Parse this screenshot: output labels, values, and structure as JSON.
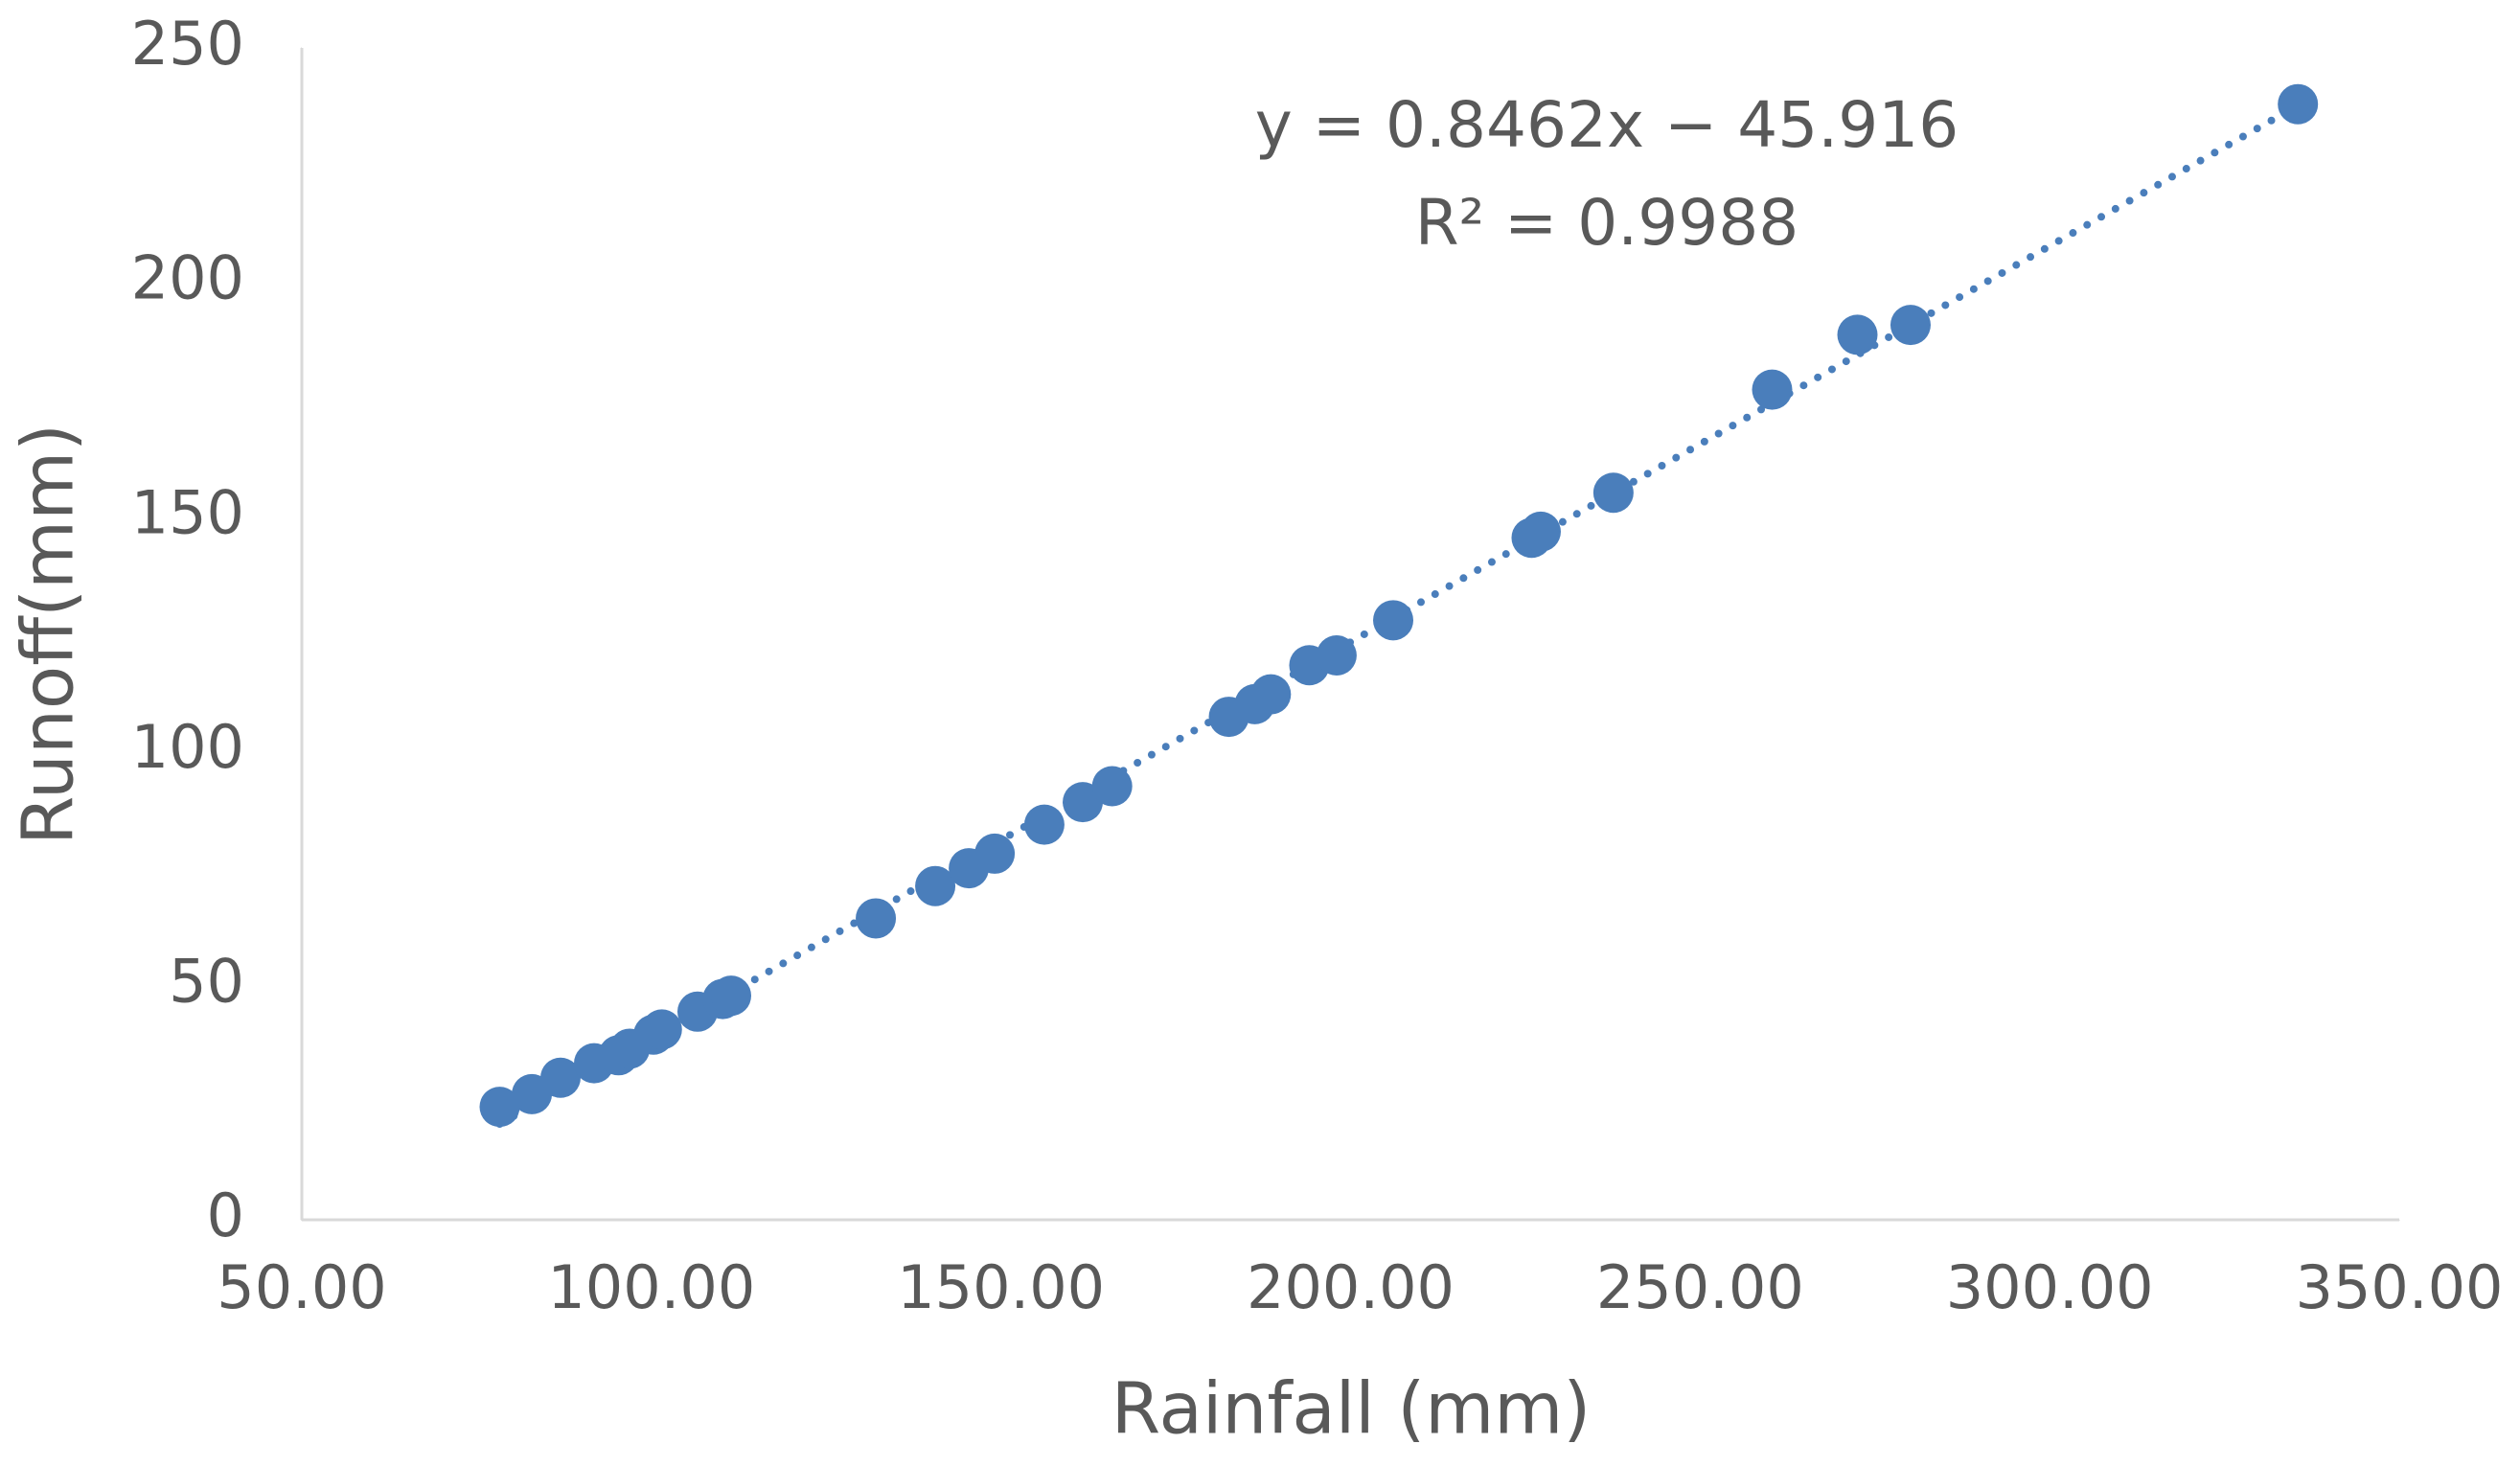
{
  "chart_data": {
    "type": "scatter",
    "x_label": "Rainfall (mm)",
    "y_label": "Runoff(mm)",
    "annotations": [
      "y = 0.8462x − 45.916",
      "R² = 0.9988"
    ],
    "color": "#4a7ebb",
    "trendline": true,
    "xlim": [
      50,
      350
    ],
    "xticks": [
      {
        "value": 50,
        "label": "50.00"
      },
      {
        "value": 100,
        "label": "100.00"
      },
      {
        "value": 150,
        "label": "150.00"
      },
      {
        "value": 200,
        "label": "200.00"
      },
      {
        "value": 250,
        "label": "250.00"
      },
      {
        "value": 300,
        "label": "300.00"
      },
      {
        "value": 350,
        "label": "350.00"
      }
    ],
    "ylim": [
      0,
      250
    ],
    "yticks": [
      0,
      50,
      100,
      150,
      200,
      250
    ],
    "x": [
      78.3,
      82.9,
      87.0,
      91.8,
      95.3,
      96.9,
      100.3,
      101.5,
      106.6,
      110.2,
      111.4,
      132.1,
      140.6,
      145.4,
      149.1,
      156.2,
      161.7,
      165.9,
      182.6,
      186.3,
      188.6,
      194.1,
      198.0,
      206.1,
      225.9,
      227.2,
      237.6,
      260.3,
      272.5,
      280.1,
      335.5
    ],
    "values": [
      24.1,
      26.8,
      30.3,
      33.4,
      35.1,
      36.5,
      39.5,
      40.6,
      44.4,
      47.1,
      47.8,
      64.3,
      71.2,
      75.0,
      78.1,
      84.3,
      89.1,
      92.5,
      107.3,
      110.0,
      112.1,
      118.3,
      120.4,
      127.9,
      145.5,
      146.8,
      155.1,
      177.1,
      188.8,
      190.9,
      238.0
    ]
  }
}
